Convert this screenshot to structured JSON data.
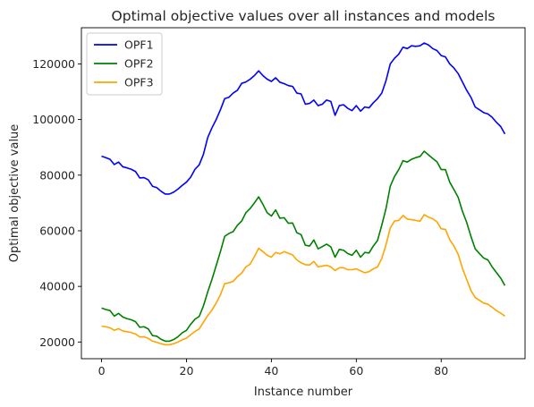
{
  "chart_data": {
    "type": "line",
    "title": "Optimal objective values over all instances and models",
    "xlabel": "Instance number",
    "ylabel": "Optimal objective value",
    "xlim": [
      -4.75,
      99.75
    ],
    "ylim": [
      14000,
      133000
    ],
    "xticks": [
      0,
      20,
      40,
      60,
      80
    ],
    "xtick_labels": [
      "0",
      "20",
      "40",
      "60",
      "80"
    ],
    "yticks": [
      20000,
      40000,
      60000,
      80000,
      100000,
      120000
    ],
    "ytick_labels": [
      "20000",
      "40000",
      "60000",
      "80000",
      "100000",
      "120000"
    ],
    "grid": false,
    "legend_position": "top-left",
    "series": [
      {
        "name": "OPF1",
        "color": "#0000ff",
        "values": [
          86800,
          86300,
          85700,
          83800,
          84700,
          83000,
          82600,
          82100,
          81300,
          79000,
          79100,
          78300,
          76000,
          75500,
          74200,
          73200,
          73200,
          73900,
          75000,
          76300,
          77500,
          79300,
          82100,
          83700,
          87500,
          93500,
          97000,
          100000,
          103500,
          107500,
          108000,
          109500,
          110500,
          113000,
          113500,
          114500,
          115800,
          117500,
          115800,
          114500,
          113700,
          115000,
          113400,
          112900,
          112200,
          111900,
          109500,
          109200,
          105500,
          105800,
          107000,
          105000,
          105500,
          107000,
          106500,
          101500,
          105000,
          105300,
          104000,
          103200,
          105000,
          103000,
          104500,
          104200,
          106000,
          107500,
          109500,
          114000,
          120000,
          122000,
          123500,
          126000,
          125500,
          126500,
          126300,
          126500,
          127500,
          126800,
          125500,
          124800,
          123000,
          122500,
          120000,
          118500,
          116500,
          113500,
          110500,
          108000,
          104500,
          103500,
          102500,
          102000,
          100800,
          99000,
          97500,
          94800
        ]
      },
      {
        "name": "OPF2",
        "color": "#008000",
        "values": [
          32200,
          31700,
          31300,
          29300,
          30300,
          29000,
          28400,
          28000,
          27300,
          25300,
          25500,
          24700,
          22300,
          22100,
          21000,
          20300,
          20300,
          20900,
          21900,
          23300,
          24200,
          26400,
          28200,
          29200,
          33000,
          38000,
          42500,
          47500,
          52500,
          58000,
          59000,
          59700,
          62000,
          63500,
          66500,
          68000,
          70000,
          72200,
          69500,
          66500,
          65300,
          67500,
          64500,
          64700,
          62700,
          62800,
          59300,
          58600,
          54800,
          54500,
          56700,
          53500,
          54300,
          55200,
          54200,
          50500,
          53300,
          53000,
          51800,
          51200,
          53000,
          50500,
          52200,
          52000,
          54500,
          56500,
          62000,
          68000,
          76000,
          79500,
          82000,
          85200,
          84700,
          85700,
          86300,
          86700,
          88600,
          87300,
          86000,
          84800,
          82000,
          82000,
          77500,
          74800,
          72000,
          67000,
          63000,
          58000,
          53500,
          51800,
          50200,
          49500,
          47000,
          45000,
          43000,
          40300
        ]
      },
      {
        "name": "OPF3",
        "color": "#ffa500",
        "values": [
          25700,
          25500,
          25100,
          24200,
          24800,
          24000,
          23700,
          23400,
          22900,
          21800,
          21900,
          21300,
          20300,
          19900,
          19400,
          19000,
          19000,
          19400,
          20000,
          20800,
          21400,
          22600,
          23800,
          24700,
          27100,
          29500,
          31500,
          34000,
          37000,
          41000,
          41300,
          41800,
          43500,
          44800,
          47000,
          48000,
          50700,
          53700,
          52500,
          51200,
          50500,
          52200,
          51700,
          52500,
          51900,
          51300,
          49500,
          48500,
          47800,
          47700,
          49000,
          47000,
          47300,
          47600,
          47000,
          45700,
          46700,
          46700,
          46000,
          46000,
          46300,
          45600,
          44900,
          45300,
          46300,
          47000,
          50000,
          55000,
          61000,
          63500,
          63700,
          65500,
          64200,
          64000,
          63700,
          63400,
          65800,
          64900,
          64300,
          63200,
          60700,
          60500,
          56800,
          54500,
          51500,
          46500,
          42500,
          38500,
          36000,
          35000,
          34000,
          33600,
          32500,
          31300,
          30400,
          29300
        ]
      }
    ]
  }
}
